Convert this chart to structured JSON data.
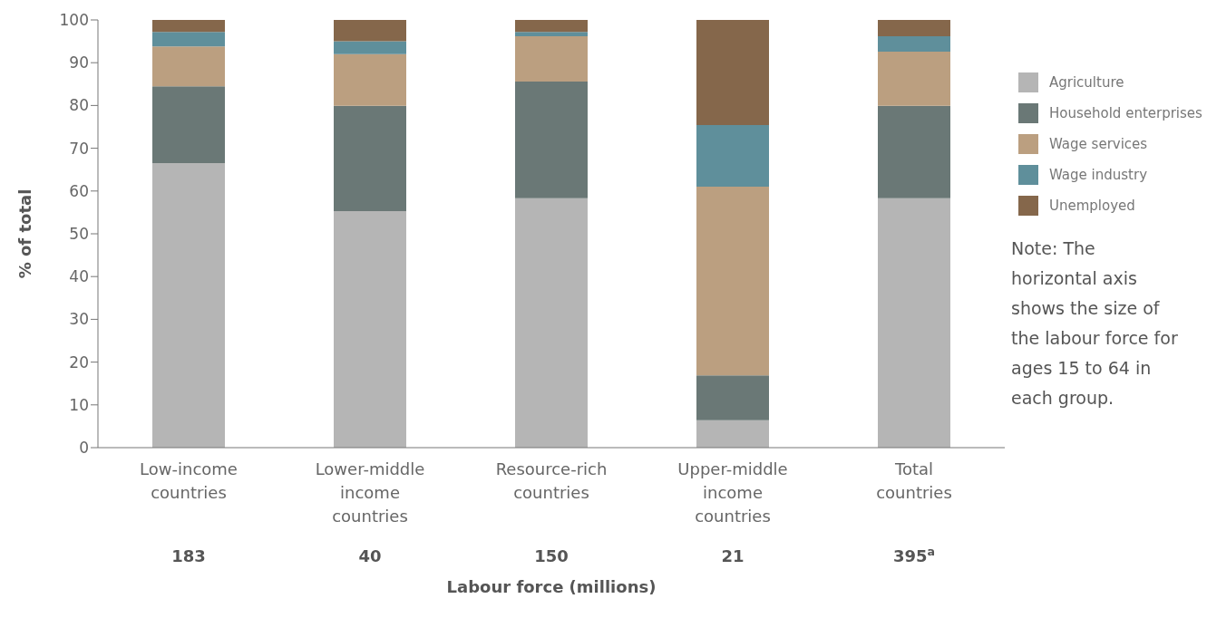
{
  "chart_data": {
    "type": "bar",
    "stacked": true,
    "ylabel": "% of total",
    "xlabel": "Labour force (millions)",
    "categories": [
      "Low-income countries",
      "Lower-middle income countries",
      "Resource-rich countries",
      "Upper-middle income countries",
      "Total countries"
    ],
    "series": [
      {
        "name": "Agriculture",
        "color": "#b5b5b5",
        "values": [
          66.5,
          55.3,
          58.3,
          6.4,
          58.3
        ]
      },
      {
        "name": "Household enterprises",
        "color": "#6a7876",
        "values": [
          18,
          24.6,
          27.3,
          10.5,
          21.6
        ]
      },
      {
        "name": "Wage services",
        "color": "#bb9f80",
        "values": [
          9.3,
          12.1,
          10.6,
          44.1,
          12.7
        ]
      },
      {
        "name": "Wage industry",
        "color": "#5f8f9b",
        "values": [
          3.4,
          3,
          1,
          14.4,
          3.6
        ]
      },
      {
        "name": "Unemployed",
        "color": "#85674b",
        "values": [
          2.8,
          5,
          2.8,
          24.6,
          3.8
        ]
      }
    ],
    "ylim": [
      0,
      100
    ],
    "yticks": [
      0,
      10,
      20,
      30,
      40,
      50,
      60,
      70,
      80,
      90,
      100
    ],
    "grid": false,
    "legend": "right",
    "annotations": [
      "183",
      "40",
      "150",
      "21",
      "395$^{a}$",
      "Note: The horizontal axis shows the size of the labour force for ages 15 to 64 in each group."
    ]
  }
}
